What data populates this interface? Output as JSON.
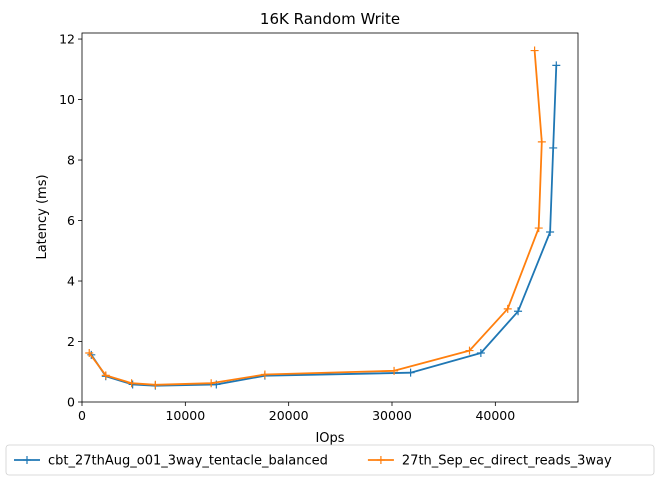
{
  "chart_data": {
    "type": "line",
    "title": "16K  Random Write",
    "xlabel": "IOps",
    "ylabel": "Latency (ms)",
    "xlim": [
      0,
      48000
    ],
    "ylim": [
      0,
      12.2
    ],
    "xticks": [
      0,
      10000,
      20000,
      30000,
      40000
    ],
    "yticks": [
      0,
      2,
      4,
      6,
      8,
      10,
      12
    ],
    "grid": false,
    "legend_placement": "below",
    "series": [
      {
        "name": "cbt_27thAug_o01_3way_tentacle_balanced",
        "color": "#1f77b4",
        "marker": "+",
        "x": [
          900,
          2300,
          4900,
          7100,
          13000,
          17700,
          31800,
          38600,
          42200,
          45300,
          45600,
          45900
        ],
        "y": [
          1.56,
          0.85,
          0.58,
          0.54,
          0.58,
          0.87,
          0.97,
          1.62,
          3.0,
          5.62,
          8.4,
          11.13
        ]
      },
      {
        "name": "27th_Sep_ec_direct_reads_3way",
        "color": "#ff7f0e",
        "marker": "+",
        "x": [
          700,
          2300,
          4800,
          7100,
          12500,
          17700,
          30200,
          37500,
          41200,
          44200,
          44500,
          43800
        ],
        "y": [
          1.62,
          0.88,
          0.62,
          0.57,
          0.62,
          0.91,
          1.03,
          1.7,
          3.08,
          5.75,
          8.6,
          11.62
        ]
      }
    ]
  }
}
